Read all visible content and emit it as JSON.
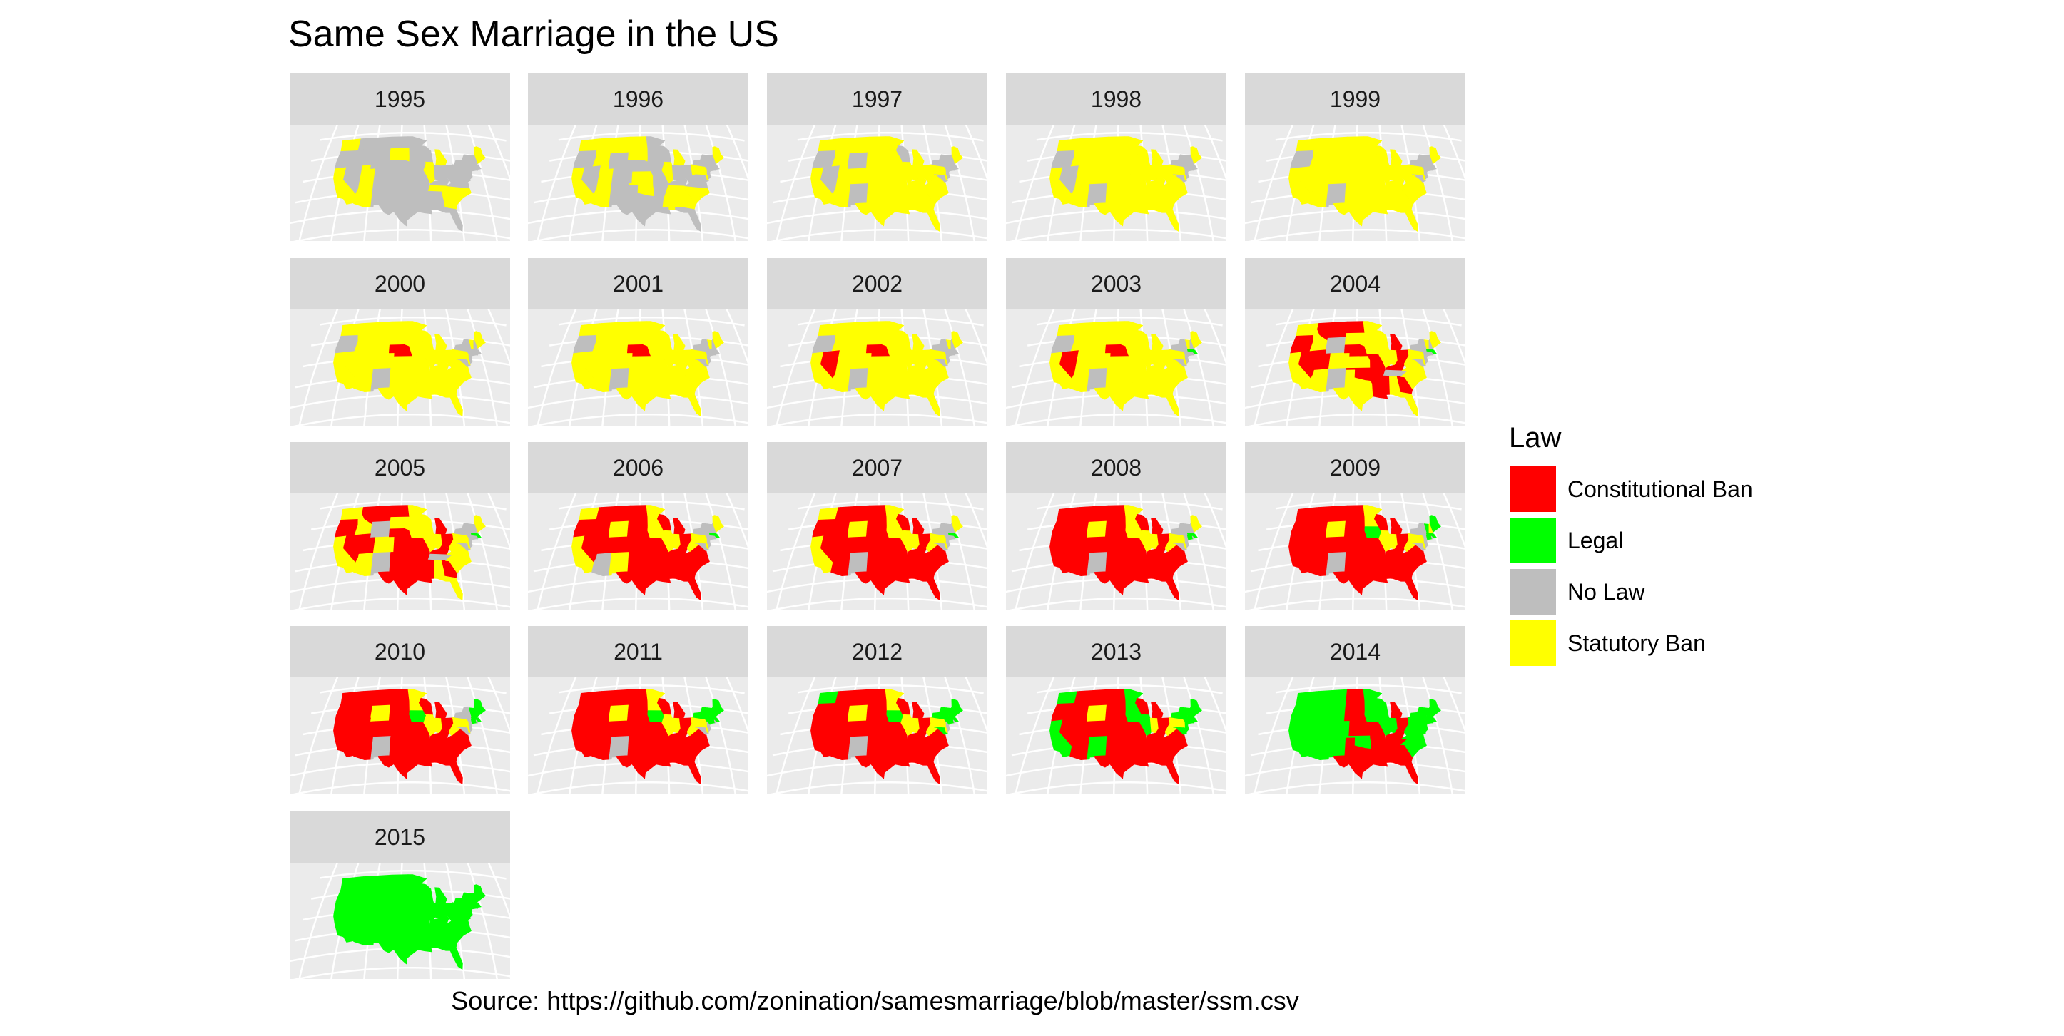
{
  "colors": {
    "Constitutional Ban": "#ff0000",
    "Legal": "#00ff00",
    "No Law": "#bebebe",
    "Statutory Ban": "#ffff00"
  },
  "chart_data": {
    "type": "map",
    "title": "Same Sex Marriage in the US",
    "caption": "Source: https://github.com/zonination/samesmarriage/blob/master/ssm.csv",
    "facet_by": "year",
    "legend": {
      "title": "Law",
      "placement": "right",
      "entries": [
        "Constitutional Ban",
        "Legal",
        "No Law",
        "Statutory Ban"
      ]
    },
    "states": [
      "WA",
      "OR",
      "CA",
      "ID",
      "NV",
      "MT",
      "WY",
      "UT",
      "AZ",
      "CO",
      "NM",
      "ND",
      "SD",
      "NE",
      "KS",
      "OK",
      "TX",
      "MN",
      "IA",
      "MO",
      "AR",
      "LA",
      "WI",
      "IL",
      "MI",
      "IN",
      "KY",
      "TN",
      "MS",
      "AL",
      "OH",
      "GA",
      "FL",
      "SC",
      "NC",
      "VA",
      "WV",
      "PA",
      "NY",
      "VT",
      "NH",
      "ME",
      "MA",
      "CT",
      "RI",
      "NJ",
      "DE",
      "MD"
    ],
    "panels": [
      {
        "year": "1995",
        "statutory": [
          "CA",
          "AZ",
          "UT",
          "WA",
          "IL",
          "MI",
          "SD",
          "TN",
          "GA",
          "SC",
          "NC",
          "ME"
        ],
        "constitutional": [],
        "legal": []
      },
      {
        "year": "1996",
        "statutory": [
          "CA",
          "AZ",
          "UT",
          "WA",
          "ID",
          "MT",
          "ND",
          "SD",
          "KS",
          "OK",
          "IL",
          "MI",
          "TN",
          "GA",
          "SC",
          "NC",
          "PA",
          "ME",
          "DE",
          "MS",
          "AL"
        ],
        "constitutional": [],
        "legal": []
      },
      {
        "year": "1997",
        "statutory": [
          "WA",
          "ID",
          "MT",
          "ND",
          "SD",
          "KS",
          "OK",
          "TX",
          "MN",
          "MO",
          "AR",
          "LA",
          "IL",
          "MI",
          "IN",
          "KY",
          "TN",
          "MS",
          "AL",
          "OH",
          "GA",
          "FL",
          "SC",
          "NC",
          "VA",
          "PA",
          "ME",
          "DE",
          "CA",
          "AZ",
          "UT",
          "CO",
          "NE",
          "IA",
          "WV"
        ],
        "constitutional": [],
        "legal": []
      },
      {
        "year": "1998",
        "statutory": [
          "WA",
          "ID",
          "MT",
          "ND",
          "SD",
          "KS",
          "OK",
          "TX",
          "MN",
          "MO",
          "AR",
          "LA",
          "IL",
          "MI",
          "IN",
          "KY",
          "TN",
          "MS",
          "AL",
          "OH",
          "GA",
          "FL",
          "SC",
          "NC",
          "VA",
          "PA",
          "ME",
          "DE",
          "CA",
          "AZ",
          "UT",
          "CO",
          "NE",
          "IA",
          "WV",
          "WY",
          "WI"
        ],
        "constitutional": [],
        "legal": []
      },
      {
        "year": "1999",
        "statutory": [
          "WA",
          "ID",
          "MT",
          "ND",
          "SD",
          "KS",
          "OK",
          "TX",
          "MN",
          "MO",
          "AR",
          "LA",
          "IL",
          "MI",
          "IN",
          "KY",
          "TN",
          "MS",
          "AL",
          "OH",
          "GA",
          "FL",
          "SC",
          "NC",
          "VA",
          "PA",
          "ME",
          "DE",
          "CA",
          "AZ",
          "UT",
          "CO",
          "NE",
          "IA",
          "WV",
          "WY",
          "WI",
          "NV"
        ],
        "constitutional": [],
        "legal": []
      },
      {
        "year": "2000",
        "statutory": [
          "WA",
          "ID",
          "MT",
          "ND",
          "SD",
          "KS",
          "OK",
          "TX",
          "MN",
          "MO",
          "AR",
          "LA",
          "IL",
          "MI",
          "IN",
          "KY",
          "TN",
          "MS",
          "AL",
          "OH",
          "GA",
          "FL",
          "SC",
          "NC",
          "VA",
          "PA",
          "ME",
          "DE",
          "CA",
          "AZ",
          "UT",
          "CO",
          "IA",
          "WV",
          "WY",
          "WI",
          "NV",
          "VT"
        ],
        "constitutional": [
          "NE"
        ],
        "legal": []
      },
      {
        "year": "2001",
        "statutory": [
          "WA",
          "ID",
          "MT",
          "ND",
          "SD",
          "KS",
          "OK",
          "TX",
          "MN",
          "MO",
          "AR",
          "LA",
          "IL",
          "MI",
          "IN",
          "KY",
          "TN",
          "MS",
          "AL",
          "OH",
          "GA",
          "FL",
          "SC",
          "NC",
          "VA",
          "PA",
          "ME",
          "DE",
          "CA",
          "AZ",
          "UT",
          "CO",
          "IA",
          "WV",
          "WY",
          "WI",
          "NV",
          "VT"
        ],
        "constitutional": [
          "NE"
        ],
        "legal": []
      },
      {
        "year": "2002",
        "statutory": [
          "WA",
          "ID",
          "MT",
          "ND",
          "SD",
          "KS",
          "OK",
          "TX",
          "MN",
          "MO",
          "AR",
          "LA",
          "IL",
          "MI",
          "IN",
          "KY",
          "TN",
          "MS",
          "AL",
          "OH",
          "GA",
          "FL",
          "SC",
          "NC",
          "VA",
          "PA",
          "ME",
          "DE",
          "CA",
          "AZ",
          "UT",
          "CO",
          "IA",
          "WV",
          "WY",
          "WI",
          "VT"
        ],
        "constitutional": [
          "NE",
          "NV"
        ],
        "legal": []
      },
      {
        "year": "2003",
        "statutory": [
          "WA",
          "ID",
          "MT",
          "ND",
          "SD",
          "KS",
          "OK",
          "TX",
          "MN",
          "MO",
          "AR",
          "LA",
          "IL",
          "MI",
          "IN",
          "KY",
          "TN",
          "MS",
          "AL",
          "OH",
          "GA",
          "FL",
          "SC",
          "NC",
          "VA",
          "PA",
          "ME",
          "DE",
          "CA",
          "AZ",
          "UT",
          "CO",
          "IA",
          "WV",
          "WY",
          "WI",
          "VT"
        ],
        "constitutional": [
          "NE",
          "NV"
        ],
        "legal": [
          "MA"
        ]
      },
      {
        "year": "2004",
        "statutory": [
          "WA",
          "ID",
          "CA",
          "AZ",
          "CO",
          "SD",
          "KS",
          "TX",
          "MN",
          "IA",
          "WI",
          "IL",
          "IN",
          "AL",
          "FL",
          "SC",
          "NC",
          "VA",
          "WV",
          "PA",
          "ME",
          "DE",
          "VT"
        ],
        "constitutional": [
          "OR",
          "MT",
          "ND",
          "UT",
          "NE",
          "NV",
          "OK",
          "MO",
          "AR",
          "LA",
          "MS",
          "KY",
          "OH",
          "MI",
          "GA"
        ],
        "legal": [
          "MA"
        ]
      },
      {
        "year": "2005",
        "statutory": [
          "WA",
          "ID",
          "CA",
          "AZ",
          "CO",
          "SD",
          "MN",
          "IA",
          "WI",
          "IL",
          "IN",
          "AL",
          "FL",
          "SC",
          "NC",
          "VA",
          "WV",
          "PA",
          "ME",
          "DE"
        ],
        "constitutional": [
          "OR",
          "MT",
          "ND",
          "UT",
          "NE",
          "NV",
          "OK",
          "MO",
          "AR",
          "LA",
          "MS",
          "KY",
          "OH",
          "MI",
          "GA",
          "TX",
          "KS"
        ],
        "legal": [
          "MA"
        ]
      },
      {
        "year": "2006",
        "statutory": [
          "WA",
          "CA",
          "WY",
          "MN",
          "IA",
          "IL",
          "IN",
          "PA",
          "ME",
          "DE",
          "WV",
          "NM"
        ],
        "constitutional": [
          "OR",
          "MT",
          "ND",
          "UT",
          "NE",
          "NV",
          "OK",
          "MO",
          "AR",
          "LA",
          "MS",
          "KY",
          "OH",
          "MI",
          "GA",
          "TX",
          "KS",
          "ID",
          "CO",
          "SD",
          "WI",
          "AL",
          "SC",
          "NC",
          "VA",
          "FL",
          "TN"
        ],
        "legal": [
          "MA"
        ]
      },
      {
        "year": "2007",
        "statutory": [
          "WA",
          "CA",
          "WY",
          "MN",
          "IA",
          "IL",
          "IN",
          "PA",
          "ME",
          "DE",
          "WV"
        ],
        "constitutional": [
          "OR",
          "MT",
          "ND",
          "UT",
          "NE",
          "NV",
          "OK",
          "MO",
          "AR",
          "LA",
          "MS",
          "KY",
          "OH",
          "MI",
          "GA",
          "TX",
          "KS",
          "ID",
          "CO",
          "SD",
          "WI",
          "AL",
          "SC",
          "NC",
          "VA",
          "FL",
          "TN",
          "AZ"
        ],
        "legal": [
          "MA"
        ]
      },
      {
        "year": "2008",
        "statutory": [
          "WY",
          "MN",
          "IA",
          "IL",
          "IN",
          "PA",
          "DE",
          "WV",
          "ME"
        ],
        "constitutional": [
          "WA",
          "OR",
          "CA",
          "MT",
          "ND",
          "UT",
          "NE",
          "NV",
          "OK",
          "MO",
          "AR",
          "LA",
          "MS",
          "KY",
          "OH",
          "MI",
          "GA",
          "TX",
          "KS",
          "ID",
          "CO",
          "SD",
          "WI",
          "AL",
          "SC",
          "NC",
          "VA",
          "FL",
          "TN",
          "AZ"
        ],
        "legal": [
          "MA",
          "CT"
        ]
      },
      {
        "year": "2009",
        "statutory": [
          "WY",
          "MN",
          "IL",
          "IN",
          "PA",
          "DE",
          "WV",
          "NH"
        ],
        "constitutional": [
          "WA",
          "OR",
          "CA",
          "MT",
          "ND",
          "UT",
          "NE",
          "NV",
          "OK",
          "MO",
          "AR",
          "LA",
          "MS",
          "KY",
          "OH",
          "MI",
          "GA",
          "TX",
          "KS",
          "ID",
          "CO",
          "SD",
          "WI",
          "AL",
          "SC",
          "NC",
          "VA",
          "FL",
          "TN",
          "AZ"
        ],
        "legal": [
          "MA",
          "CT",
          "IA",
          "VT",
          "ME"
        ]
      },
      {
        "year": "2010",
        "statutory": [
          "WY",
          "MN",
          "IL",
          "IN",
          "PA",
          "DE",
          "WV"
        ],
        "constitutional": [
          "WA",
          "OR",
          "CA",
          "MT",
          "ND",
          "UT",
          "NE",
          "NV",
          "OK",
          "MO",
          "AR",
          "LA",
          "MS",
          "KY",
          "OH",
          "MI",
          "GA",
          "TX",
          "KS",
          "ID",
          "CO",
          "SD",
          "WI",
          "AL",
          "SC",
          "NC",
          "VA",
          "FL",
          "TN",
          "AZ"
        ],
        "legal": [
          "MA",
          "CT",
          "IA",
          "VT",
          "NH",
          "ME"
        ]
      },
      {
        "year": "2011",
        "statutory": [
          "WY",
          "MN",
          "IL",
          "IN",
          "PA",
          "DE",
          "WV"
        ],
        "constitutional": [
          "WA",
          "OR",
          "CA",
          "MT",
          "ND",
          "UT",
          "NE",
          "NV",
          "OK",
          "MO",
          "AR",
          "LA",
          "MS",
          "KY",
          "OH",
          "MI",
          "GA",
          "TX",
          "KS",
          "ID",
          "CO",
          "SD",
          "WI",
          "AL",
          "SC",
          "NC",
          "VA",
          "FL",
          "TN",
          "AZ"
        ],
        "legal": [
          "MA",
          "CT",
          "IA",
          "VT",
          "NH",
          "NY",
          "ME"
        ]
      },
      {
        "year": "2012",
        "statutory": [
          "WY",
          "MN",
          "IL",
          "IN",
          "PA",
          "DE",
          "WV"
        ],
        "constitutional": [
          "OR",
          "CA",
          "MT",
          "ND",
          "UT",
          "NE",
          "NV",
          "OK",
          "MO",
          "AR",
          "LA",
          "MS",
          "KY",
          "OH",
          "MI",
          "GA",
          "TX",
          "KS",
          "ID",
          "CO",
          "SD",
          "WI",
          "AL",
          "SC",
          "NC",
          "VA",
          "FL",
          "TN",
          "AZ"
        ],
        "legal": [
          "MA",
          "CT",
          "IA",
          "VT",
          "NH",
          "NY",
          "WA",
          "ME",
          "MD"
        ]
      },
      {
        "year": "2013",
        "statutory": [
          "WY",
          "IN",
          "PA",
          "WV"
        ],
        "constitutional": [
          "OR",
          "MT",
          "ND",
          "UT",
          "NE",
          "NV",
          "OK",
          "MO",
          "AR",
          "LA",
          "MS",
          "KY",
          "OH",
          "MI",
          "GA",
          "TX",
          "KS",
          "ID",
          "CO",
          "SD",
          "WI",
          "AL",
          "SC",
          "NC",
          "VA",
          "FL",
          "TN",
          "AZ"
        ],
        "legal": [
          "MA",
          "CT",
          "IA",
          "VT",
          "NH",
          "NY",
          "WA",
          "ME",
          "MD",
          "CA",
          "MN",
          "IL",
          "NM",
          "DE",
          "RI",
          "NJ"
        ]
      },
      {
        "year": "2014",
        "statutory": [],
        "constitutional": [
          "ND",
          "SD",
          "NE",
          "KS",
          "TX",
          "MO",
          "AR",
          "LA",
          "MS",
          "AL",
          "GA",
          "TN",
          "KY",
          "OH",
          "MI",
          "FL"
        ],
        "legal": [
          "WA",
          "OR",
          "CA",
          "ID",
          "NV",
          "MT",
          "WY",
          "UT",
          "AZ",
          "CO",
          "NM",
          "OK",
          "MN",
          "IA",
          "WI",
          "IL",
          "IN",
          "SC",
          "NC",
          "VA",
          "WV",
          "PA",
          "NY",
          "VT",
          "NH",
          "ME",
          "MA",
          "CT",
          "RI",
          "NJ",
          "DE",
          "MD"
        ]
      },
      {
        "year": "2015",
        "statutory": [],
        "constitutional": [],
        "legal": [
          "WA",
          "OR",
          "CA",
          "ID",
          "NV",
          "MT",
          "WY",
          "UT",
          "AZ",
          "CO",
          "NM",
          "ND",
          "SD",
          "NE",
          "KS",
          "OK",
          "TX",
          "MN",
          "IA",
          "MO",
          "AR",
          "LA",
          "WI",
          "IL",
          "MI",
          "IN",
          "KY",
          "TN",
          "MS",
          "AL",
          "OH",
          "GA",
          "FL",
          "SC",
          "NC",
          "VA",
          "WV",
          "PA",
          "NY",
          "VT",
          "NH",
          "ME",
          "MA",
          "CT",
          "RI",
          "NJ",
          "DE",
          "MD"
        ]
      }
    ]
  }
}
